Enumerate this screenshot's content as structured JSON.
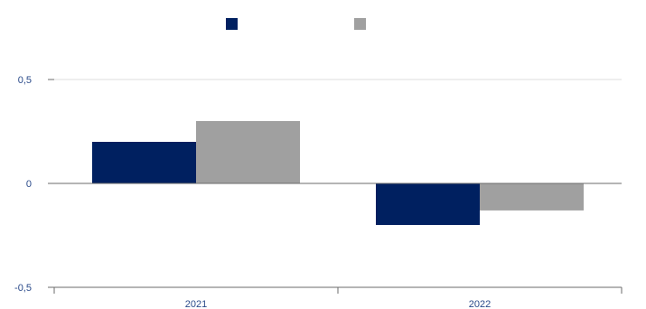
{
  "chart_data": {
    "type": "bar",
    "title": "",
    "xlabel": "",
    "ylabel": "",
    "categories": [
      "2021",
      "2022"
    ],
    "series": [
      {
        "color": "#002060",
        "values": [
          0.2,
          -0.2
        ]
      },
      {
        "color": "#a0a0a0",
        "values": [
          0.3,
          -0.13
        ]
      }
    ],
    "ylim": [
      -0.5,
      0.5
    ],
    "yticks": [
      {
        "value": 0.5,
        "label": "0,5"
      },
      {
        "value": 0,
        "label": "0"
      },
      {
        "value": -0.5,
        "label": "-0,5"
      }
    ],
    "grid": true,
    "legend_position": "top-center"
  }
}
